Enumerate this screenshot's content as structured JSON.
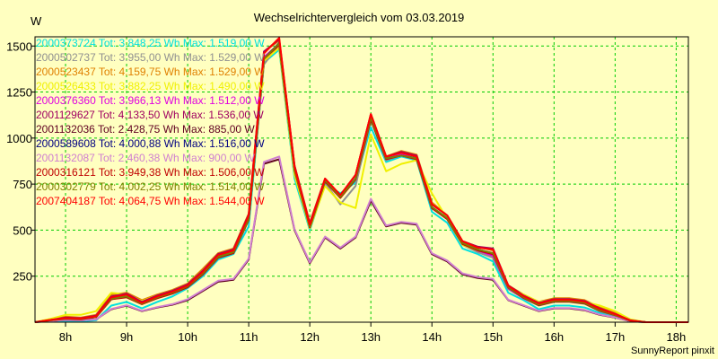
{
  "chart_data": {
    "type": "line",
    "title": "Wechselrichtervergleich vom 03.03.2019",
    "ylabel": "W",
    "footer": "SunnyReport pinxit",
    "xlim": [
      7.5,
      18.2
    ],
    "ylim": [
      0,
      1550
    ],
    "xticks": [
      {
        "value": 8,
        "label": "8h"
      },
      {
        "value": 9,
        "label": "9h"
      },
      {
        "value": 10,
        "label": "10h"
      },
      {
        "value": 11,
        "label": "11h"
      },
      {
        "value": 12,
        "label": "12h"
      },
      {
        "value": 13,
        "label": "13h"
      },
      {
        "value": 14,
        "label": "14h"
      },
      {
        "value": 15,
        "label": "15h"
      },
      {
        "value": 16,
        "label": "16h"
      },
      {
        "value": 17,
        "label": "17h"
      },
      {
        "value": 18,
        "label": "18h"
      }
    ],
    "yticks": [
      {
        "value": 250,
        "label": "250"
      },
      {
        "value": 500,
        "label": "500"
      },
      {
        "value": 750,
        "label": "750"
      },
      {
        "value": 1000,
        "label": "1000"
      },
      {
        "value": 1250,
        "label": "1250"
      },
      {
        "value": 1500,
        "label": "1500"
      }
    ],
    "grid": true,
    "legend_position": "top-left",
    "x": [
      7.5,
      7.75,
      8.0,
      8.25,
      8.5,
      8.75,
      9.0,
      9.25,
      9.5,
      9.75,
      10.0,
      10.25,
      10.5,
      10.75,
      11.0,
      11.25,
      11.5,
      11.75,
      12.0,
      12.25,
      12.5,
      12.75,
      13.0,
      13.25,
      13.5,
      13.75,
      14.0,
      14.25,
      14.5,
      14.75,
      15.0,
      15.25,
      15.5,
      15.75,
      16.0,
      16.25,
      16.5,
      16.75,
      17.0,
      17.25,
      17.5,
      17.75,
      18.0,
      18.2
    ],
    "series": [
      {
        "name": "2000373724 Tot: 3.848,25 Wh Max: 1.519,00 W",
        "color": "#00e0e0",
        "values": [
          0,
          8,
          5,
          5,
          10,
          90,
          110,
          75,
          110,
          140,
          185,
          250,
          340,
          370,
          520,
          1410,
          1480,
          780,
          500,
          750,
          700,
          760,
          1060,
          870,
          900,
          880,
          600,
          540,
          400,
          370,
          330,
          160,
          120,
          70,
          90,
          90,
          80,
          50,
          30,
          5,
          0,
          0,
          0,
          0
        ]
      },
      {
        "name": "2000502737 Tot: 3.955,00 Wh Max: 1.529,00 W",
        "color": "#909090",
        "values": [
          0,
          10,
          15,
          20,
          30,
          130,
          140,
          100,
          130,
          160,
          200,
          270,
          360,
          390,
          560,
          1400,
          1510,
          820,
          520,
          760,
          640,
          740,
          1100,
          880,
          910,
          890,
          620,
          560,
          420,
          380,
          350,
          180,
          130,
          90,
          110,
          110,
          100,
          60,
          35,
          5,
          0,
          0,
          0,
          0
        ]
      },
      {
        "name": "2000523437 Tot: 4.159,75 Wh Max: 1.529,00 W",
        "color": "#e08000",
        "values": [
          0,
          15,
          30,
          25,
          40,
          150,
          160,
          120,
          150,
          175,
          210,
          290,
          375,
          400,
          590,
          1470,
          1529,
          850,
          540,
          780,
          690,
          800,
          1130,
          900,
          930,
          910,
          650,
          580,
          440,
          410,
          390,
          200,
          150,
          110,
          130,
          130,
          120,
          80,
          50,
          10,
          0,
          0,
          0,
          0
        ]
      },
      {
        "name": "2000526433 Tot: 3.882,25 Wh Max: 1.490,00 W",
        "color": "#f0f000",
        "values": [
          0,
          18,
          40,
          40,
          60,
          160,
          150,
          115,
          145,
          170,
          205,
          280,
          365,
          385,
          570,
          1420,
          1490,
          800,
          510,
          740,
          650,
          620,
          1020,
          820,
          860,
          880,
          700,
          560,
          420,
          390,
          360,
          190,
          150,
          110,
          120,
          120,
          110,
          90,
          60,
          15,
          0,
          0,
          0,
          0
        ]
      },
      {
        "name": "2000376360 Tot: 3.966,13 Wh Max: 1.512,00 W",
        "color": "#e000e0",
        "values": [
          0,
          10,
          20,
          18,
          30,
          130,
          140,
          100,
          135,
          160,
          195,
          265,
          355,
          380,
          560,
          1440,
          1512,
          830,
          520,
          770,
          680,
          780,
          1110,
          890,
          910,
          890,
          620,
          560,
          430,
          390,
          360,
          185,
          130,
          95,
          115,
          115,
          105,
          65,
          40,
          8,
          0,
          0,
          0,
          0
        ]
      },
      {
        "name": "2001129627 Tot: 4.133,50 Wh Max: 1.536,00 W",
        "color": "#a00060",
        "values": [
          0,
          12,
          25,
          22,
          35,
          140,
          155,
          110,
          145,
          170,
          205,
          280,
          370,
          395,
          585,
          1470,
          1536,
          850,
          535,
          780,
          690,
          800,
          1130,
          900,
          925,
          905,
          640,
          580,
          440,
          410,
          400,
          200,
          145,
          105,
          125,
          125,
          115,
          75,
          45,
          10,
          0,
          0,
          0,
          0
        ]
      },
      {
        "name": "2001132036 Tot: 2.428,75 Wh Max: 885,00 W",
        "color": "#600020",
        "values": [
          0,
          6,
          12,
          10,
          15,
          70,
          90,
          60,
          80,
          95,
          120,
          170,
          220,
          230,
          340,
          860,
          885,
          500,
          320,
          460,
          400,
          460,
          660,
          520,
          540,
          530,
          370,
          330,
          260,
          240,
          230,
          120,
          90,
          60,
          75,
          75,
          65,
          40,
          25,
          5,
          0,
          0,
          0,
          0
        ]
      },
      {
        "name": "2000589608 Tot: 4.000,88 Wh Max: 1.516,00 W",
        "color": "#000080",
        "values": [
          0,
          10,
          18,
          16,
          28,
          125,
          140,
          100,
          135,
          160,
          195,
          265,
          355,
          380,
          560,
          1430,
          1516,
          830,
          520,
          770,
          680,
          780,
          1110,
          890,
          905,
          890,
          625,
          565,
          430,
          395,
          375,
          190,
          135,
          95,
          115,
          115,
          105,
          65,
          40,
          8,
          0,
          0,
          0,
          0
        ]
      },
      {
        "name": "2001132087 Tot: 2.460,38 Wh Max: 900,00 W",
        "color": "#d080d0",
        "values": [
          0,
          6,
          12,
          10,
          15,
          72,
          92,
          62,
          82,
          98,
          125,
          175,
          225,
          235,
          345,
          870,
          900,
          505,
          325,
          465,
          405,
          465,
          670,
          525,
          545,
          535,
          375,
          335,
          265,
          245,
          235,
          122,
          92,
          62,
          77,
          77,
          67,
          42,
          26,
          5,
          0,
          0,
          0,
          0
        ]
      },
      {
        "name": "2000316121 Tot: 3.949,38 Wh Max: 1.506,00 W",
        "color": "#c00000",
        "values": [
          0,
          10,
          18,
          16,
          28,
          125,
          135,
          98,
          130,
          155,
          190,
          260,
          350,
          375,
          555,
          1430,
          1506,
          825,
          515,
          765,
          675,
          775,
          1100,
          885,
          905,
          885,
          620,
          560,
          425,
          390,
          370,
          188,
          132,
          92,
          112,
          112,
          102,
          62,
          38,
          8,
          0,
          0,
          0,
          0
        ]
      },
      {
        "name": "2000302779 Tot: 4.002,25 Wh Max: 1.514,00 W",
        "color": "#808000",
        "values": [
          0,
          10,
          20,
          18,
          30,
          128,
          140,
          100,
          135,
          160,
          195,
          265,
          355,
          380,
          560,
          1430,
          1514,
          830,
          520,
          770,
          680,
          780,
          1110,
          890,
          905,
          890,
          625,
          565,
          430,
          395,
          375,
          190,
          135,
          95,
          115,
          115,
          105,
          65,
          40,
          8,
          0,
          0,
          0,
          0
        ]
      },
      {
        "name": "2007404187 Tot: 4.064,75 Wh Max: 1.544,00 W",
        "color": "#ff0000",
        "values": [
          0,
          12,
          22,
          20,
          32,
          135,
          150,
          105,
          140,
          165,
          200,
          275,
          365,
          390,
          580,
          1460,
          1544,
          845,
          530,
          780,
          690,
          800,
          1130,
          900,
          920,
          900,
          640,
          580,
          440,
          405,
          395,
          198,
          142,
          102,
          122,
          122,
          112,
          72,
          44,
          9,
          0,
          0,
          0,
          0
        ]
      }
    ]
  }
}
